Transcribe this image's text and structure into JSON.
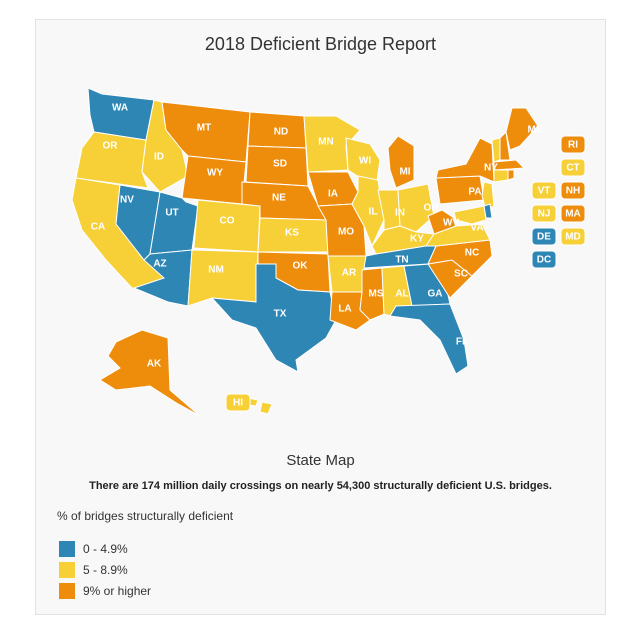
{
  "title": "2018 Deficient Bridge Report",
  "map_subtitle": "State Map",
  "note": "There are 174 million daily crossings on nearly 54,300 structurally deficient U.S. bridges.",
  "legend": {
    "title": "% of bridges structurally deficient",
    "items": [
      {
        "label": "0 - 4.9%",
        "color": "#2e86b5"
      },
      {
        "label": "5 - 8.9%",
        "color": "#f7d038"
      },
      {
        "label": "9% or higher",
        "color": "#ee8c0c"
      }
    ]
  },
  "colors": {
    "low": "#2e86b5",
    "mid": "#f7d038",
    "high": "#ee8c0c"
  },
  "states": [
    {
      "code": "WA",
      "category": "low"
    },
    {
      "code": "OR",
      "category": "mid"
    },
    {
      "code": "CA",
      "category": "mid"
    },
    {
      "code": "NV",
      "category": "low"
    },
    {
      "code": "ID",
      "category": "mid"
    },
    {
      "code": "MT",
      "category": "high"
    },
    {
      "code": "WY",
      "category": "high"
    },
    {
      "code": "UT",
      "category": "low"
    },
    {
      "code": "AZ",
      "category": "low"
    },
    {
      "code": "CO",
      "category": "mid"
    },
    {
      "code": "NM",
      "category": "mid"
    },
    {
      "code": "ND",
      "category": "high"
    },
    {
      "code": "SD",
      "category": "high"
    },
    {
      "code": "NE",
      "category": "high"
    },
    {
      "code": "KS",
      "category": "mid"
    },
    {
      "code": "OK",
      "category": "high"
    },
    {
      "code": "TX",
      "category": "low"
    },
    {
      "code": "MN",
      "category": "mid"
    },
    {
      "code": "IA",
      "category": "high"
    },
    {
      "code": "MO",
      "category": "high"
    },
    {
      "code": "AR",
      "category": "mid"
    },
    {
      "code": "LA",
      "category": "high"
    },
    {
      "code": "WI",
      "category": "mid"
    },
    {
      "code": "IL",
      "category": "mid"
    },
    {
      "code": "MI",
      "category": "high"
    },
    {
      "code": "IN",
      "category": "mid"
    },
    {
      "code": "OH",
      "category": "mid"
    },
    {
      "code": "KY",
      "category": "mid"
    },
    {
      "code": "TN",
      "category": "low"
    },
    {
      "code": "MS",
      "category": "high"
    },
    {
      "code": "AL",
      "category": "mid"
    },
    {
      "code": "GA",
      "category": "low"
    },
    {
      "code": "FL",
      "category": "low"
    },
    {
      "code": "SC",
      "category": "high"
    },
    {
      "code": "NC",
      "category": "high"
    },
    {
      "code": "VA",
      "category": "mid"
    },
    {
      "code": "WV",
      "category": "high"
    },
    {
      "code": "PA",
      "category": "high"
    },
    {
      "code": "NY",
      "category": "high"
    },
    {
      "code": "ME",
      "category": "high"
    },
    {
      "code": "AK",
      "category": "high"
    },
    {
      "code": "HI",
      "category": "mid"
    },
    {
      "code": "RI",
      "category": "high"
    },
    {
      "code": "CT",
      "category": "mid"
    },
    {
      "code": "VT",
      "category": "mid"
    },
    {
      "code": "NH",
      "category": "high"
    },
    {
      "code": "NJ",
      "category": "mid"
    },
    {
      "code": "MA",
      "category": "high"
    },
    {
      "code": "DE",
      "category": "low"
    },
    {
      "code": "MD",
      "category": "mid"
    },
    {
      "code": "DC",
      "category": "low"
    }
  ]
}
